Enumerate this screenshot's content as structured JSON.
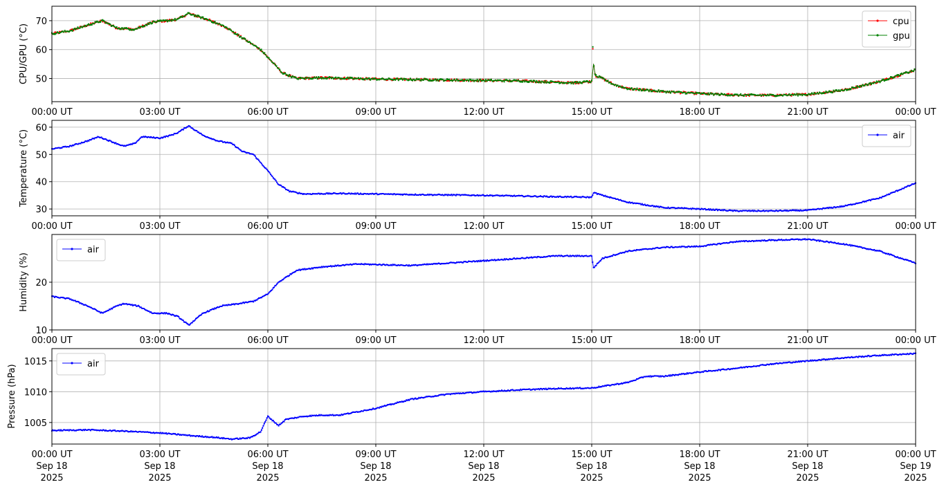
{
  "chart_data": [
    {
      "type": "line",
      "ylabel": "CPU/GPU (°C)",
      "ylim": [
        42,
        75
      ],
      "yticks": [
        50,
        60,
        70
      ],
      "grid": true,
      "legend_position": "top-right",
      "x_hours": [
        0,
        0.5,
        1,
        1.4,
        1.8,
        2.3,
        2.8,
        3.2,
        3.5,
        3.8,
        4.3,
        4.8,
        5.3,
        5.8,
        6.1,
        6.4,
        6.8,
        7.5,
        9,
        11,
        13,
        14.5,
        15.0,
        15.02,
        15.05,
        15.1,
        15.3,
        15.6,
        16,
        17,
        18,
        19,
        20,
        21,
        22,
        23,
        24
      ],
      "series": [
        {
          "name": "cpu",
          "color": "#ff0000",
          "values": [
            65.5,
            66.5,
            68.5,
            70,
            67.5,
            67,
            69.5,
            70,
            70.5,
            72.5,
            70.5,
            68,
            64,
            60,
            56,
            52,
            50,
            50.3,
            49.8,
            49.5,
            49.2,
            48.5,
            49,
            63.5,
            55,
            51,
            50,
            48,
            46.5,
            45.5,
            44.8,
            44.3,
            44.2,
            44.5,
            46,
            49,
            53
          ]
        },
        {
          "name": "gpu",
          "color": "#008000",
          "values": [
            65.5,
            66.5,
            68.5,
            70,
            67.5,
            67,
            69.5,
            70,
            70.5,
            72.5,
            70.5,
            68,
            64,
            60,
            56,
            52,
            50,
            50.3,
            49.8,
            49.5,
            49.2,
            48.5,
            49,
            63.5,
            55,
            51,
            50,
            48,
            46.5,
            45.5,
            44.8,
            44.3,
            44.2,
            44.5,
            46,
            49,
            53
          ]
        }
      ]
    },
    {
      "type": "line",
      "ylabel": "Temperature (°C)",
      "ylim": [
        27.5,
        62.5
      ],
      "yticks": [
        30,
        40,
        50,
        60
      ],
      "grid": true,
      "legend_position": "top-right",
      "x_hours": [
        0,
        0.5,
        1,
        1.3,
        1.6,
        2,
        2.3,
        2.5,
        3,
        3.3,
        3.5,
        3.8,
        4.2,
        4.6,
        5,
        5.3,
        5.6,
        6,
        6.3,
        6.6,
        7,
        8,
        10,
        12,
        14,
        15,
        15.05,
        15.3,
        16,
        17,
        18,
        19,
        20,
        21,
        22,
        23,
        24
      ],
      "series": [
        {
          "name": "air",
          "color": "#0000ff",
          "values": [
            52,
            53,
            55,
            56.5,
            55,
            53,
            54,
            56.5,
            56,
            57,
            58,
            60.5,
            57,
            55,
            54,
            51,
            50,
            44,
            39,
            36.5,
            35.5,
            35.7,
            35.3,
            35,
            34.5,
            34.3,
            36,
            35,
            32.5,
            30.5,
            30,
            29.3,
            29.3,
            29.5,
            31,
            34,
            39.5
          ]
        }
      ]
    },
    {
      "type": "line",
      "ylabel": "Humidity (%)",
      "ylim": [
        10,
        30
      ],
      "yticks": [
        10,
        20
      ],
      "grid": true,
      "legend_position": "top-left",
      "x_hours": [
        0,
        0.5,
        1,
        1.4,
        1.8,
        2,
        2.4,
        2.8,
        3.2,
        3.5,
        3.8,
        4.2,
        4.7,
        5.2,
        5.6,
        6,
        6.3,
        6.6,
        6.8,
        7.5,
        8.5,
        10,
        12,
        14,
        15,
        15.05,
        15.3,
        16,
        17,
        18,
        19,
        20,
        21,
        22,
        23,
        24
      ],
      "series": [
        {
          "name": "air",
          "color": "#0000ff",
          "values": [
            17,
            16.5,
            15,
            13.5,
            15,
            15.5,
            15,
            13.5,
            13.5,
            12.8,
            11,
            13.5,
            15,
            15.5,
            16,
            17.5,
            20,
            21.5,
            22.5,
            23.2,
            23.8,
            23.5,
            24.5,
            25.5,
            25.5,
            23,
            25,
            26.5,
            27.3,
            27.5,
            28.5,
            28.8,
            29,
            28,
            26.5,
            24
          ]
        }
      ]
    },
    {
      "type": "line",
      "ylabel": "Pressure (hPa)",
      "ylim": [
        1001.5,
        1017
      ],
      "yticks": [
        1005,
        1010,
        1015
      ],
      "grid": true,
      "legend_position": "top-left",
      "x_hours": [
        0,
        1,
        2,
        3,
        4,
        4.5,
        5,
        5.5,
        5.8,
        6,
        6.3,
        6.5,
        7,
        7.5,
        8,
        9,
        10,
        11,
        12,
        13,
        14,
        15,
        16,
        16.5,
        17,
        18,
        19,
        20,
        21,
        22,
        23,
        24
      ],
      "series": [
        {
          "name": "air",
          "color": "#0000ff",
          "values": [
            1003.7,
            1003.8,
            1003.6,
            1003.3,
            1002.8,
            1002.6,
            1002.3,
            1002.5,
            1003.5,
            1006,
            1004.5,
            1005.5,
            1006,
            1006.2,
            1006.2,
            1007.3,
            1008.8,
            1009.6,
            1010,
            1010.3,
            1010.5,
            1010.6,
            1011.5,
            1012.5,
            1012.5,
            1013.2,
            1013.8,
            1014.5,
            1015,
            1015.5,
            1015.9,
            1016.2
          ]
        }
      ]
    }
  ],
  "x_axis": {
    "xlim_hours": [
      0,
      24
    ],
    "ticks": [
      {
        "hour": 0,
        "time": "00:00 UT",
        "day": "Sep 18",
        "year": "2025"
      },
      {
        "hour": 3,
        "time": "03:00 UT",
        "day": "Sep 18",
        "year": "2025"
      },
      {
        "hour": 6,
        "time": "06:00 UT",
        "day": "Sep 18",
        "year": "2025"
      },
      {
        "hour": 9,
        "time": "09:00 UT",
        "day": "Sep 18",
        "year": "2025"
      },
      {
        "hour": 12,
        "time": "12:00 UT",
        "day": "Sep 18",
        "year": "2025"
      },
      {
        "hour": 15,
        "time": "15:00 UT",
        "day": "Sep 18",
        "year": "2025"
      },
      {
        "hour": 18,
        "time": "18:00 UT",
        "day": "Sep 18",
        "year": "2025"
      },
      {
        "hour": 21,
        "time": "21:00 UT",
        "day": "Sep 18",
        "year": "2025"
      },
      {
        "hour": 24,
        "time": "00:00 UT",
        "day": "Sep 19",
        "year": "2025"
      }
    ]
  },
  "colors": {
    "grid": "#b0b0b0",
    "frame": "#000000",
    "legend_border": "#cccccc"
  }
}
